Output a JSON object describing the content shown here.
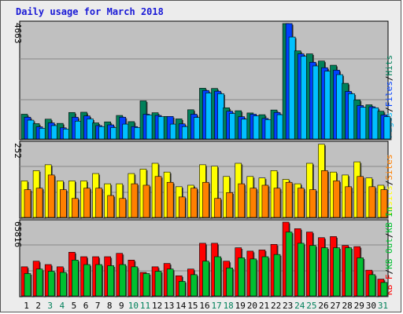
{
  "title": "Daily usage for March 2018",
  "colors": {
    "pages": "#00c0ff",
    "files": "#0040ff",
    "hits": "#00805a",
    "visits": "#ffff00",
    "sites": "#ff8000",
    "kbin": "#00c030",
    "kbout": "#ff0000",
    "weekend_day": "#00805a",
    "weekday_day": "#000000",
    "panel_bg": "#c0c0c0"
  },
  "chart_data": [
    {
      "type": "bar",
      "panel": "hits",
      "ymax_label": "4663",
      "ymax": 4663,
      "categories": [
        "1",
        "2",
        "3",
        "4",
        "5",
        "6",
        "7",
        "8",
        "9",
        "10",
        "11",
        "12",
        "13",
        "14",
        "15",
        "16",
        "17",
        "18",
        "19",
        "20",
        "21",
        "22",
        "23",
        "24",
        "25",
        "26",
        "27",
        "28",
        "29",
        "30",
        "31"
      ],
      "series": [
        {
          "name": "Hits",
          "values": [
            1000,
            620,
            800,
            630,
            1070,
            1080,
            650,
            690,
            950,
            700,
            1540,
            1060,
            910,
            810,
            1180,
            2050,
            2040,
            1260,
            1140,
            1050,
            980,
            1170,
            4663,
            3560,
            3440,
            3150,
            2980,
            2250,
            1580,
            1380,
            1120
          ]
        },
        {
          "name": "Files",
          "values": [
            880,
            490,
            650,
            450,
            880,
            930,
            540,
            570,
            880,
            500,
            1000,
            950,
            910,
            610,
            1000,
            1960,
            1930,
            1120,
            900,
            1000,
            830,
            1070,
            4663,
            3440,
            3100,
            2880,
            2780,
            1920,
            1350,
            1300,
            970
          ]
        },
        {
          "name": "Pages",
          "values": [
            760,
            430,
            540,
            400,
            720,
            810,
            500,
            460,
            600,
            460,
            970,
            900,
            600,
            500,
            870,
            1860,
            1830,
            1030,
            800,
            930,
            780,
            980,
            4120,
            3340,
            2950,
            2740,
            2600,
            1830,
            1280,
            1260,
            900
          ]
        }
      ],
      "legend": [
        "Pages",
        "/",
        "Files",
        "/",
        "Hits"
      ]
    },
    {
      "type": "bar",
      "panel": "visits",
      "ymax_label": "252",
      "ymax": 252,
      "categories": [
        "1",
        "2",
        "3",
        "4",
        "5",
        "6",
        "7",
        "8",
        "9",
        "10",
        "11",
        "12",
        "13",
        "14",
        "15",
        "16",
        "17",
        "18",
        "19",
        "20",
        "21",
        "22",
        "23",
        "24",
        "25",
        "26",
        "27",
        "28",
        "29",
        "30",
        "31"
      ],
      "series": [
        {
          "name": "Visits",
          "values": [
            125,
            160,
            180,
            125,
            125,
            125,
            150,
            115,
            115,
            150,
            165,
            185,
            155,
            105,
            110,
            180,
            175,
            140,
            185,
            140,
            135,
            160,
            130,
            115,
            185,
            250,
            155,
            145,
            190,
            135,
            110
          ]
        },
        {
          "name": "Sites",
          "values": [
            95,
            100,
            145,
            95,
            65,
            100,
            100,
            75,
            65,
            115,
            110,
            140,
            120,
            70,
            100,
            120,
            65,
            85,
            115,
            100,
            110,
            100,
            120,
            100,
            95,
            160,
            125,
            105,
            140,
            105,
            95
          ]
        }
      ],
      "legend": [
        "Visits",
        "/",
        "Sites"
      ]
    },
    {
      "type": "bar",
      "panel": "kbytes",
      "ymax_label": "65816",
      "ymax": 65816,
      "categories": [
        "1",
        "2",
        "3",
        "4",
        "5",
        "6",
        "7",
        "8",
        "9",
        "10",
        "11",
        "12",
        "13",
        "14",
        "15",
        "16",
        "17",
        "18",
        "19",
        "20",
        "21",
        "22",
        "23",
        "24",
        "25",
        "26",
        "27",
        "28",
        "29",
        "30",
        "31"
      ],
      "series": [
        {
          "name": "KB F",
          "values": [
            26000,
            31000,
            28000,
            26000,
            39000,
            35000,
            35000,
            35000,
            38000,
            32000,
            21000,
            26000,
            29000,
            18000,
            24000,
            47000,
            47000,
            31000,
            43000,
            40000,
            41000,
            46000,
            65816,
            60000,
            57000,
            52000,
            53000,
            45000,
            44000,
            23000,
            15000
          ]
        },
        {
          "name": "KB Out",
          "values": [
            0,
            0,
            0,
            0,
            0,
            0,
            0,
            0,
            0,
            0,
            0,
            0,
            0,
            0,
            0,
            0,
            0,
            0,
            0,
            0,
            0,
            0,
            0,
            0,
            0,
            0,
            0,
            0,
            0,
            0,
            0
          ]
        },
        {
          "name": "KB In",
          "values": [
            20000,
            24000,
            22000,
            21000,
            32000,
            28000,
            28000,
            27000,
            28000,
            26000,
            20000,
            22000,
            24000,
            13000,
            19000,
            31000,
            35000,
            25000,
            34000,
            33000,
            35000,
            37000,
            57000,
            47000,
            45000,
            43000,
            43000,
            43000,
            34000,
            19000,
            12000
          ]
        }
      ],
      "legend": [
        "KB F",
        "/",
        "KB Out",
        "/",
        "KB In"
      ]
    }
  ],
  "day_labels": [
    "1",
    "2",
    "3",
    "4",
    "5",
    "6",
    "7",
    "8",
    "9",
    "10",
    "11",
    "12",
    "13",
    "14",
    "15",
    "16",
    "17",
    "18",
    "19",
    "20",
    "21",
    "22",
    "23",
    "24",
    "25",
    "26",
    "27",
    "28",
    "29",
    "30",
    "31"
  ],
  "weekend_days": [
    3,
    4,
    10,
    11,
    17,
    18,
    24,
    25,
    31
  ]
}
